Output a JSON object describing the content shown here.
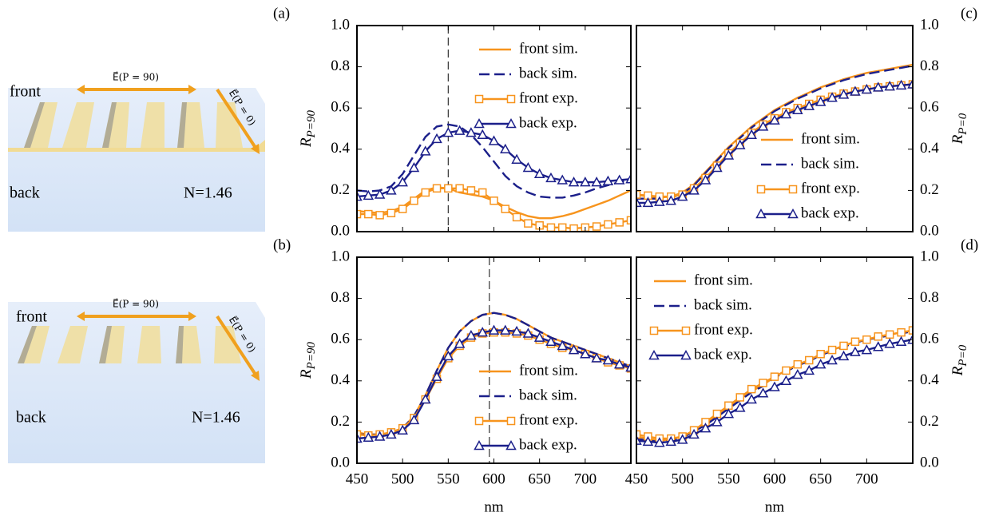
{
  "diagrams": [
    {
      "top": "front",
      "bottom": "back",
      "index": "N=1.46",
      "e_parallel": "E⃗(P = 90)",
      "e_perp": "E⃗(P = 0)"
    },
    {
      "top": "front",
      "bottom": "back",
      "index": "N=1.46",
      "e_parallel": "E⃗(P = 90)",
      "e_perp": "E⃗(P = 0)"
    }
  ],
  "chart_data": [
    {
      "type": "line",
      "panel": "(a)",
      "ylabel": "R",
      "ylabel_subscript": "P=90",
      "yaxis_side": "left",
      "xtick_labels": false,
      "legend": "upper right",
      "vline": 550,
      "x": [
        450,
        462.5,
        475,
        487.5,
        500,
        512.5,
        525,
        537.5,
        550,
        562.5,
        575,
        587.5,
        600,
        612.5,
        625,
        637.5,
        650,
        662.5,
        675,
        687.5,
        700,
        712.5,
        725,
        737.5,
        750
      ],
      "xlim": [
        450,
        750
      ],
      "xticks": [
        450,
        500,
        550,
        600,
        650,
        700
      ],
      "ylim": [
        0,
        1
      ],
      "yticks": [
        {
          "value": 0,
          "label": "0.0"
        },
        {
          "value": 0.2,
          "label": "0.2"
        },
        {
          "value": 0.4,
          "label": "0.4"
        },
        {
          "value": 0.6,
          "label": "0.6"
        },
        {
          "value": 0.8,
          "label": "0.8"
        },
        {
          "value": 1,
          "label": "1.0"
        }
      ],
      "series": [
        {
          "name": "front sim.",
          "color": "#f7941d",
          "style": "solid",
          "marker": null,
          "values": [
            0.1,
            0.095,
            0.09,
            0.1,
            0.12,
            0.16,
            0.2,
            0.215,
            0.21,
            0.19,
            0.18,
            0.17,
            0.15,
            0.12,
            0.095,
            0.075,
            0.065,
            0.065,
            0.075,
            0.09,
            0.11,
            0.13,
            0.15,
            0.175,
            0.2
          ]
        },
        {
          "name": "back sim.",
          "color": "#1b1f8a",
          "style": "dashed",
          "marker": null,
          "values": [
            0.2,
            0.195,
            0.2,
            0.22,
            0.28,
            0.37,
            0.46,
            0.51,
            0.52,
            0.51,
            0.47,
            0.41,
            0.34,
            0.27,
            0.22,
            0.19,
            0.17,
            0.165,
            0.165,
            0.175,
            0.19,
            0.21,
            0.225,
            0.24,
            0.255
          ]
        },
        {
          "name": "front exp.",
          "color": "#f7941d",
          "style": "solid",
          "marker": "square",
          "values": [
            0.085,
            0.085,
            0.08,
            0.09,
            0.11,
            0.15,
            0.19,
            0.21,
            0.21,
            0.21,
            0.2,
            0.19,
            0.15,
            0.11,
            0.07,
            0.04,
            0.03,
            0.02,
            0.02,
            0.015,
            0.02,
            0.025,
            0.035,
            0.045,
            0.055
          ]
        },
        {
          "name": "back exp.",
          "color": "#1b1f8a",
          "style": "solid",
          "marker": "triangle",
          "values": [
            0.17,
            0.175,
            0.18,
            0.2,
            0.24,
            0.31,
            0.39,
            0.45,
            0.48,
            0.49,
            0.48,
            0.47,
            0.44,
            0.4,
            0.35,
            0.31,
            0.28,
            0.26,
            0.25,
            0.24,
            0.24,
            0.24,
            0.245,
            0.25,
            0.255
          ]
        }
      ]
    },
    {
      "type": "line",
      "panel": "(b)",
      "ylabel": "R",
      "ylabel_subscript": "P=90",
      "yaxis_side": "left",
      "xtick_labels": true,
      "xlabel": "nm",
      "legend": "lower right",
      "vline": 595,
      "x": [
        450,
        462.5,
        475,
        487.5,
        500,
        512.5,
        525,
        537.5,
        550,
        562.5,
        575,
        587.5,
        600,
        612.5,
        625,
        637.5,
        650,
        662.5,
        675,
        687.5,
        700,
        712.5,
        725,
        737.5,
        750
      ],
      "xlim": [
        450,
        750
      ],
      "xticks": [
        450,
        500,
        550,
        600,
        650,
        700
      ],
      "ylim": [
        0,
        1
      ],
      "yticks": [
        {
          "value": 0,
          "label": "0.0"
        },
        {
          "value": 0.2,
          "label": "0.2"
        },
        {
          "value": 0.4,
          "label": "0.4"
        },
        {
          "value": 0.6,
          "label": "0.6"
        },
        {
          "value": 0.8,
          "label": "0.8"
        },
        {
          "value": 1,
          "label": "1.0"
        }
      ],
      "series": [
        {
          "name": "front sim.",
          "color": "#f7941d",
          "style": "solid",
          "marker": null,
          "values": [
            0.15,
            0.14,
            0.14,
            0.15,
            0.17,
            0.23,
            0.33,
            0.45,
            0.56,
            0.64,
            0.69,
            0.72,
            0.73,
            0.72,
            0.7,
            0.67,
            0.64,
            0.61,
            0.59,
            0.57,
            0.55,
            0.53,
            0.51,
            0.49,
            0.47
          ]
        },
        {
          "name": "back sim.",
          "color": "#1b1f8a",
          "style": "dashed",
          "marker": null,
          "values": [
            0.14,
            0.14,
            0.14,
            0.15,
            0.17,
            0.23,
            0.33,
            0.45,
            0.56,
            0.64,
            0.69,
            0.72,
            0.73,
            0.72,
            0.7,
            0.67,
            0.64,
            0.61,
            0.59,
            0.57,
            0.55,
            0.53,
            0.51,
            0.49,
            0.47
          ]
        },
        {
          "name": "front exp.",
          "color": "#f7941d",
          "style": "solid",
          "marker": "square",
          "values": [
            0.14,
            0.135,
            0.14,
            0.15,
            0.17,
            0.22,
            0.31,
            0.41,
            0.51,
            0.57,
            0.61,
            0.63,
            0.635,
            0.635,
            0.63,
            0.62,
            0.6,
            0.58,
            0.56,
            0.55,
            0.53,
            0.51,
            0.49,
            0.475,
            0.46
          ]
        },
        {
          "name": "back exp.",
          "color": "#1b1f8a",
          "style": "solid",
          "marker": "triangle",
          "values": [
            0.12,
            0.125,
            0.13,
            0.14,
            0.16,
            0.21,
            0.31,
            0.42,
            0.52,
            0.58,
            0.62,
            0.635,
            0.645,
            0.645,
            0.64,
            0.63,
            0.61,
            0.59,
            0.57,
            0.55,
            0.53,
            0.51,
            0.5,
            0.48,
            0.465
          ]
        }
      ]
    },
    {
      "type": "line",
      "panel": "(c)",
      "ylabel": "R",
      "ylabel_subscript": "P=0",
      "yaxis_side": "right",
      "xtick_labels": false,
      "legend": "lower right",
      "x": [
        450,
        462.5,
        475,
        487.5,
        500,
        512.5,
        525,
        537.5,
        550,
        562.5,
        575,
        587.5,
        600,
        612.5,
        625,
        637.5,
        650,
        662.5,
        675,
        687.5,
        700,
        712.5,
        725,
        737.5,
        750
      ],
      "xlim": [
        450,
        750
      ],
      "xticks": [
        450,
        500,
        550,
        600,
        650,
        700
      ],
      "ylim": [
        0,
        1
      ],
      "yticks": [
        {
          "value": 0,
          "label": "0.0"
        },
        {
          "value": 0.2,
          "label": "0.2"
        },
        {
          "value": 0.4,
          "label": "0.4"
        },
        {
          "value": 0.6,
          "label": "0.6"
        },
        {
          "value": 0.8,
          "label": "0.8"
        },
        {
          "value": 1,
          "label": "1.0"
        }
      ],
      "series": [
        {
          "name": "front sim.",
          "color": "#f7941d",
          "style": "solid",
          "marker": null,
          "values": [
            0.18,
            0.17,
            0.165,
            0.17,
            0.19,
            0.23,
            0.29,
            0.35,
            0.41,
            0.46,
            0.51,
            0.55,
            0.59,
            0.62,
            0.65,
            0.675,
            0.7,
            0.72,
            0.74,
            0.755,
            0.77,
            0.78,
            0.79,
            0.8,
            0.81
          ]
        },
        {
          "name": "back sim.",
          "color": "#1b1f8a",
          "style": "dashed",
          "marker": null,
          "values": [
            0.16,
            0.16,
            0.16,
            0.165,
            0.185,
            0.225,
            0.285,
            0.345,
            0.405,
            0.455,
            0.505,
            0.545,
            0.585,
            0.615,
            0.645,
            0.67,
            0.695,
            0.715,
            0.735,
            0.75,
            0.765,
            0.775,
            0.785,
            0.795,
            0.805
          ]
        },
        {
          "name": "front exp.",
          "color": "#f7941d",
          "style": "solid",
          "marker": "square",
          "values": [
            0.18,
            0.175,
            0.17,
            0.17,
            0.18,
            0.21,
            0.26,
            0.32,
            0.38,
            0.43,
            0.48,
            0.52,
            0.55,
            0.58,
            0.6,
            0.62,
            0.64,
            0.655,
            0.67,
            0.68,
            0.69,
            0.7,
            0.705,
            0.71,
            0.715
          ]
        },
        {
          "name": "back exp.",
          "color": "#1b1f8a",
          "style": "solid",
          "marker": "triangle",
          "values": [
            0.14,
            0.14,
            0.145,
            0.15,
            0.17,
            0.2,
            0.25,
            0.31,
            0.37,
            0.42,
            0.47,
            0.51,
            0.54,
            0.57,
            0.59,
            0.61,
            0.63,
            0.65,
            0.665,
            0.68,
            0.69,
            0.7,
            0.705,
            0.71,
            0.715
          ]
        }
      ]
    },
    {
      "type": "line",
      "panel": "(d)",
      "ylabel": "R",
      "ylabel_subscript": "P=0",
      "yaxis_side": "right",
      "xtick_labels": true,
      "xlabel": "nm",
      "legend": "upper left",
      "x": [
        450,
        462.5,
        475,
        487.5,
        500,
        512.5,
        525,
        537.5,
        550,
        562.5,
        575,
        587.5,
        600,
        612.5,
        625,
        637.5,
        650,
        662.5,
        675,
        687.5,
        700,
        712.5,
        725,
        737.5,
        750
      ],
      "xlim": [
        450,
        750
      ],
      "xticks": [
        450,
        500,
        550,
        600,
        650,
        700
      ],
      "ylim": [
        0,
        1
      ],
      "yticks": [
        {
          "value": 0,
          "label": "0.0"
        },
        {
          "value": 0.2,
          "label": "0.2"
        },
        {
          "value": 0.4,
          "label": "0.4"
        },
        {
          "value": 0.6,
          "label": "0.6"
        },
        {
          "value": 0.8,
          "label": "0.8"
        },
        {
          "value": 1,
          "label": "1.0"
        }
      ],
      "series": [
        {
          "name": "front sim.",
          "color": "#f7941d",
          "style": "solid",
          "marker": null,
          "values": [
            0.13,
            0.12,
            0.11,
            0.115,
            0.13,
            0.16,
            0.19,
            0.23,
            0.27,
            0.31,
            0.35,
            0.38,
            0.42,
            0.45,
            0.48,
            0.5,
            0.53,
            0.55,
            0.57,
            0.59,
            0.6,
            0.615,
            0.625,
            0.635,
            0.645
          ]
        },
        {
          "name": "back sim.",
          "color": "#1b1f8a",
          "style": "dashed",
          "marker": null,
          "values": [
            0.12,
            0.11,
            0.105,
            0.11,
            0.125,
            0.155,
            0.185,
            0.225,
            0.265,
            0.305,
            0.345,
            0.375,
            0.415,
            0.445,
            0.475,
            0.495,
            0.525,
            0.545,
            0.565,
            0.585,
            0.6,
            0.61,
            0.62,
            0.63,
            0.64
          ]
        },
        {
          "name": "front exp.",
          "color": "#f7941d",
          "style": "solid",
          "marker": "square",
          "values": [
            0.14,
            0.13,
            0.12,
            0.12,
            0.13,
            0.16,
            0.2,
            0.24,
            0.28,
            0.32,
            0.36,
            0.39,
            0.42,
            0.45,
            0.48,
            0.5,
            0.53,
            0.55,
            0.57,
            0.59,
            0.6,
            0.615,
            0.625,
            0.635,
            0.645
          ]
        },
        {
          "name": "back exp.",
          "color": "#1b1f8a",
          "style": "solid",
          "marker": "triangle",
          "values": [
            0.11,
            0.105,
            0.1,
            0.105,
            0.115,
            0.14,
            0.17,
            0.2,
            0.24,
            0.27,
            0.31,
            0.34,
            0.37,
            0.4,
            0.43,
            0.45,
            0.48,
            0.5,
            0.52,
            0.54,
            0.55,
            0.565,
            0.58,
            0.59,
            0.6
          ]
        }
      ]
    }
  ]
}
